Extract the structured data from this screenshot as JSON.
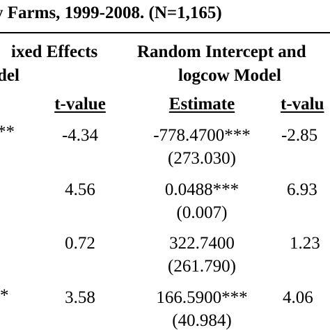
{
  "title": "y Farms, 1999-2008.  (N=1,165)",
  "headers": {
    "fixed_effects_line1": "ixed Effects",
    "fixed_effects_line2": "del",
    "random_line1": "Random Intercept and",
    "random_line2": "logcow Model",
    "col_tvalue_fe": "t-value",
    "col_estimate_ri": "Estimate",
    "col_tvalue_ri": "t-valu"
  },
  "rows": [
    {
      "fe_est": "**",
      "fe_t": "-4.34",
      "ri_est": "-778.4700***",
      "ri_se": "(273.030)",
      "ri_t": "-2.85"
    },
    {
      "fe_est": "",
      "fe_t": "4.56",
      "ri_est": "0.0488***",
      "ri_se": "(0.007)",
      "ri_t": "6.93"
    },
    {
      "fe_est": "",
      "fe_t": "0.72",
      "ri_est": "322.7400",
      "ri_se": "(261.790)",
      "ri_t": "1.23"
    },
    {
      "fe_est": "*",
      "fe_t": "3.58",
      "ri_est": "166.5900***",
      "ri_se": "(40.984)",
      "ri_t": "4.06"
    }
  ]
}
